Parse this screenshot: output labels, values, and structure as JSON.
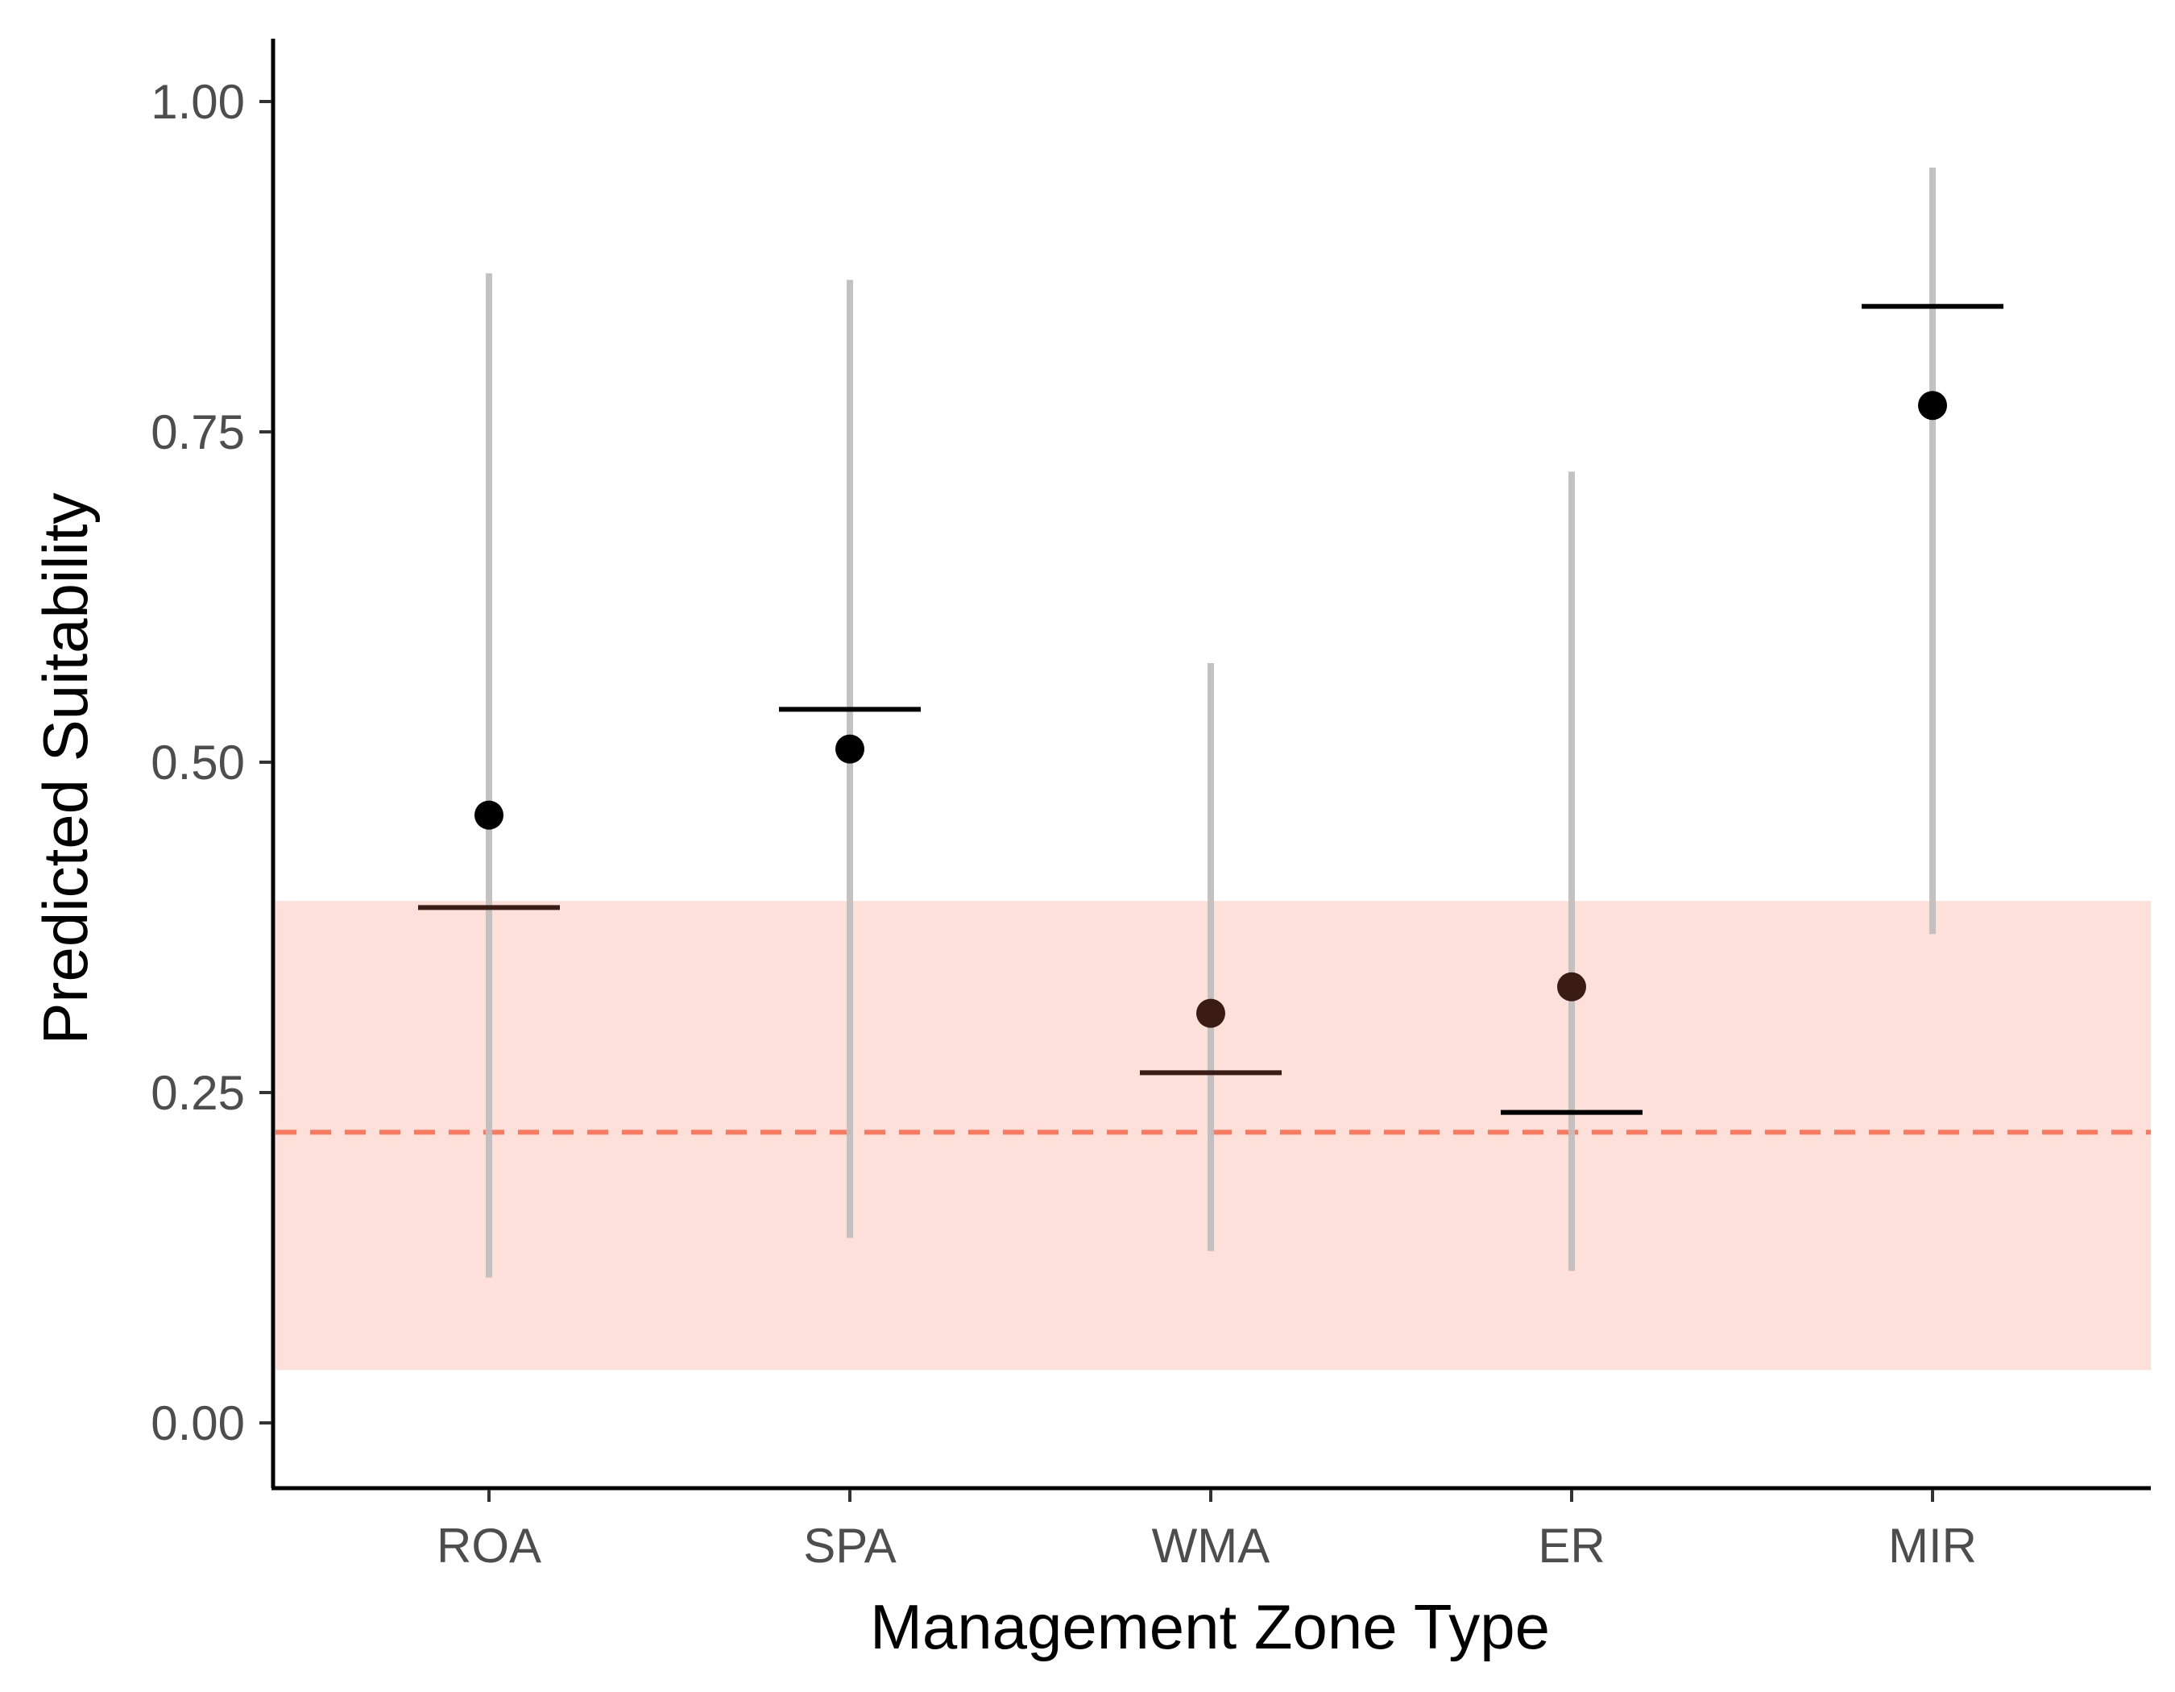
{
  "chart_data": {
    "type": "scatter",
    "xlabel": "Management Zone Type",
    "ylabel": "Predicted Suitability",
    "categories": [
      "ROA",
      "SPA",
      "WMA",
      "ER",
      "MIR"
    ],
    "ylim": [
      -0.05,
      1.05
    ],
    "yticks": [
      "0.00",
      "0.25",
      "0.50",
      "0.75",
      "1.00"
    ],
    "grid": false,
    "series": [
      {
        "kind": "point",
        "values": [
          0.46,
          0.51,
          0.31,
          0.33,
          0.77
        ]
      },
      {
        "kind": "mean_bar",
        "values": [
          0.39,
          0.54,
          0.265,
          0.235,
          0.845
        ]
      },
      {
        "kind": "interval",
        "low": [
          0.11,
          0.14,
          0.13,
          0.115,
          0.37
        ],
        "high": [
          0.87,
          0.865,
          0.575,
          0.72,
          0.95
        ]
      }
    ],
    "reference_band": {
      "low": 0.04,
      "high": 0.395,
      "color": "#fde0d9"
    },
    "reference_line": {
      "value": 0.22,
      "color": "#fa7a60",
      "style": "dashed"
    },
    "colors": {
      "interval": "#bfbfbf",
      "points": [
        "#000000",
        "#000000",
        "#3b1c14",
        "#3b1c14",
        "#000000"
      ],
      "bars": [
        "#3b1c14",
        "#000000",
        "#3b1c14",
        "#000000",
        "#000000"
      ]
    }
  }
}
